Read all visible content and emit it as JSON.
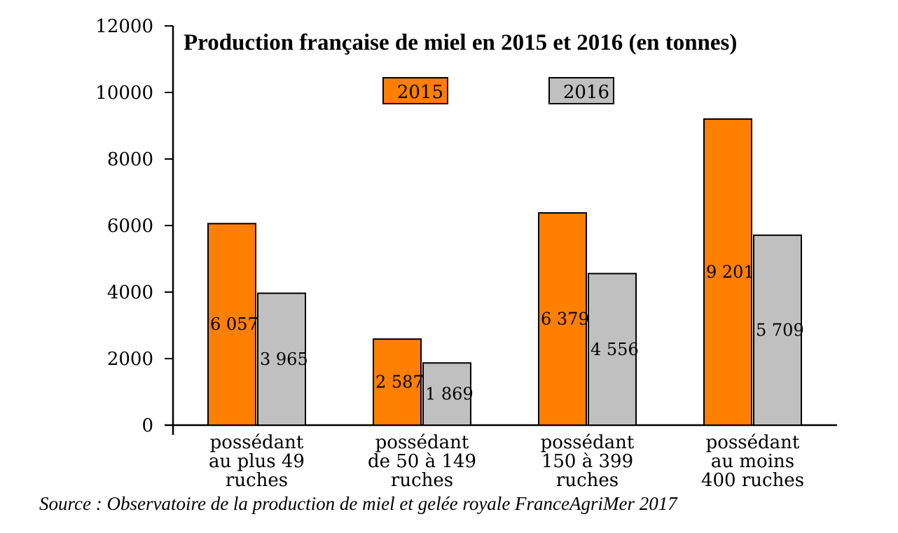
{
  "chart_data": {
    "type": "bar",
    "title": "Production française de miel en 2015 et 2016 (en tonnes)",
    "categories": [
      [
        "possédant",
        "au plus 49",
        "ruches"
      ],
      [
        "possédant",
        "de 50 à 149",
        "ruches"
      ],
      [
        "possédant",
        "150 à 399",
        "ruches"
      ],
      [
        "possédant",
        "au moins",
        "400 ruches"
      ]
    ],
    "series": [
      {
        "name": "2015",
        "color": "#ff7f00",
        "values": [
          6057,
          2587,
          6379,
          9201
        ],
        "labels": [
          "6 057",
          "2 587",
          "6 379",
          "9 201"
        ]
      },
      {
        "name": "2016",
        "color": "#c0c0c0",
        "values": [
          3965,
          1869,
          4556,
          5709
        ],
        "labels": [
          "3 965",
          "1 869",
          "4 556",
          "5 709"
        ]
      }
    ],
    "ylim": [
      0,
      12000
    ],
    "yticks": [
      0,
      2000,
      4000,
      6000,
      8000,
      10000,
      12000
    ],
    "xlabel": "",
    "ylabel": "",
    "grid": false,
    "legend": "top-center"
  },
  "source": "Source : Observatoire de la production de miel et gelée royale FranceAgriMer 2017"
}
